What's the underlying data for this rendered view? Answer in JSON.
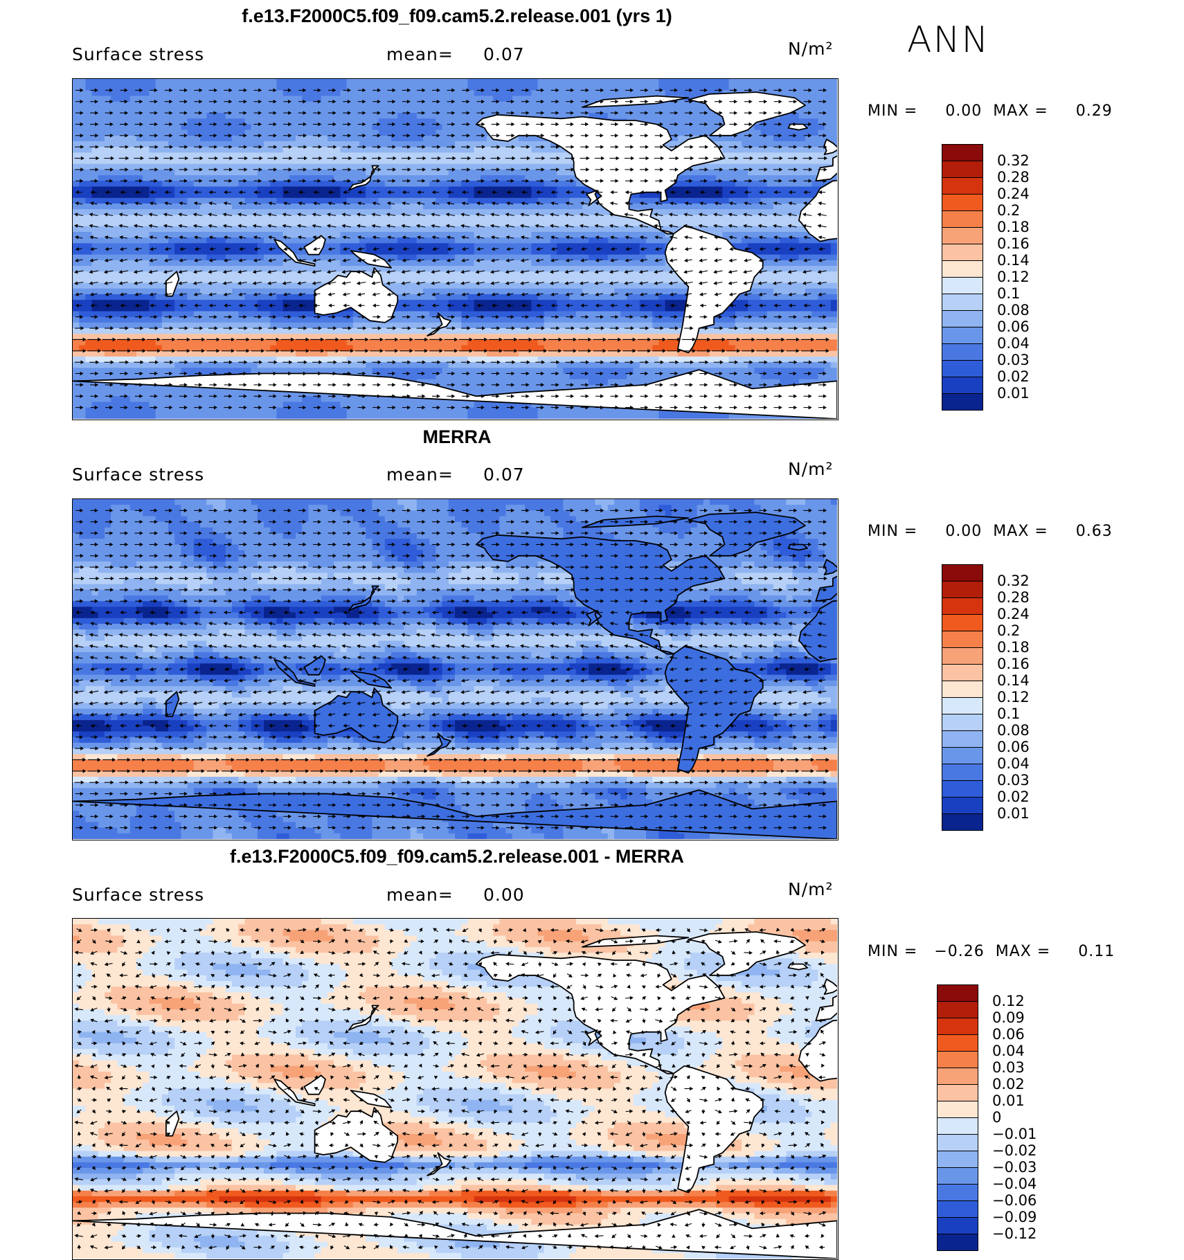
{
  "season": "ANN",
  "panels": [
    {
      "title": "f.e13.F2000C5.f09_f09.cam5.2.release.001 (yrs 1)",
      "variable": "Surface stress",
      "mean_label": "mean=",
      "mean_value": "0.07",
      "units": "N/m²",
      "min_max": "MIN =     0.00  MAX =     0.29",
      "colorbar_labels": [
        "0.32",
        "0.28",
        "0.24",
        "0.2",
        "0.18",
        "0.16",
        "0.14",
        "0.12",
        "0.1",
        "0.08",
        "0.06",
        "0.04",
        "0.03",
        "0.02",
        "0.01"
      ],
      "colorbar_colors": [
        "#8b0a0a",
        "#b31e0a",
        "#d6340f",
        "#f05a1e",
        "#f5804a",
        "#f8a278",
        "#fbc3a3",
        "#fde6d2",
        "#d8e8fb",
        "#b6d0f7",
        "#8fb4f1",
        "#6a96ea",
        "#4a78e3",
        "#2f5cd8",
        "#1a40c2",
        "#0a248f"
      ],
      "field": "model"
    },
    {
      "title": "MERRA",
      "variable": "Surface stress",
      "mean_label": "mean=",
      "mean_value": "0.07",
      "units": "N/m²",
      "min_max": "MIN =     0.00  MAX =     0.63",
      "colorbar_labels": [
        "0.32",
        "0.28",
        "0.24",
        "0.2",
        "0.18",
        "0.16",
        "0.14",
        "0.12",
        "0.1",
        "0.08",
        "0.06",
        "0.04",
        "0.03",
        "0.02",
        "0.01"
      ],
      "colorbar_colors": [
        "#8b0a0a",
        "#b31e0a",
        "#d6340f",
        "#f05a1e",
        "#f5804a",
        "#f8a278",
        "#fbc3a3",
        "#fde6d2",
        "#d8e8fb",
        "#b6d0f7",
        "#8fb4f1",
        "#6a96ea",
        "#4a78e3",
        "#2f5cd8",
        "#1a40c2",
        "#0a248f"
      ],
      "field": "obs"
    },
    {
      "title": "f.e13.F2000C5.f09_f09.cam5.2.release.001 - MERRA",
      "variable": "Surface stress",
      "mean_label": "mean=",
      "mean_value": "0.00",
      "units": "N/m²",
      "min_max": "MIN =   −0.26  MAX =     0.11",
      "colorbar_labels": [
        "0.12",
        "0.09",
        "0.06",
        "0.04",
        "0.03",
        "0.02",
        "0.01",
        "0",
        "−0.01",
        "−0.02",
        "−0.03",
        "−0.04",
        "−0.06",
        "−0.09",
        "−0.12"
      ],
      "colorbar_colors": [
        "#8b0a0a",
        "#b31e0a",
        "#d6340f",
        "#f05a1e",
        "#f5804a",
        "#f8a278",
        "#fbc3a3",
        "#fde6d2",
        "#d8e8fb",
        "#b6d0f7",
        "#8fb4f1",
        "#6a96ea",
        "#4a78e3",
        "#2f5cd8",
        "#1a40c2",
        "#0a248f"
      ],
      "field": "diff"
    }
  ]
}
